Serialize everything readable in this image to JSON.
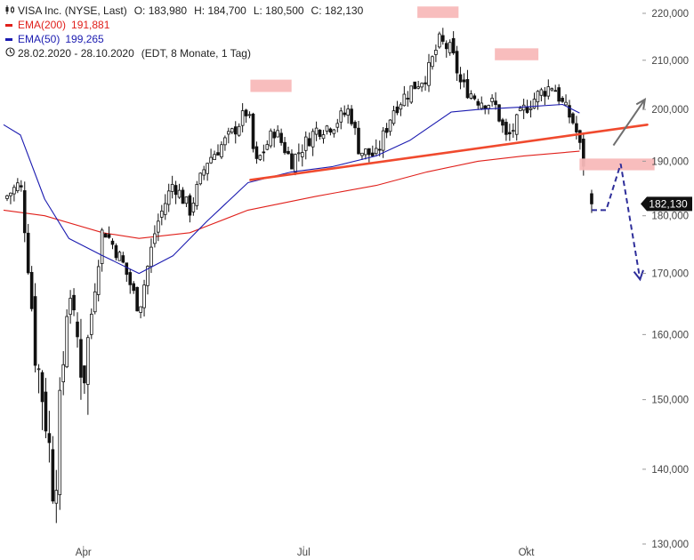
{
  "legend": {
    "title": "VISA Inc. (NYSE, Last)",
    "open": "O: 183,980",
    "high": "H: 184,700",
    "low": "L: 180,500",
    "close": "C: 182,130",
    "ema200_label": "EMA(200)",
    "ema200_value": "191,881",
    "ema50_label": "EMA(50)",
    "ema50_value": "199,265",
    "period": "28.02.2020 - 28.10.2020",
    "period_detail": "(EDT, 8 Monate, 1 Tag)"
  },
  "colors": {
    "ema200": "#e0201b",
    "ema50": "#1b1bb0",
    "trendline": "#f04a2e",
    "resistance": "#f8b9b9",
    "forecast": "#2e2e9a",
    "up_arrow": "#6e6e6e",
    "price_tag": "#111111"
  },
  "chart_data": {
    "type": "candlestick",
    "title": "VISA Inc. (NYSE, Last)",
    "x_range": [
      "2020-02-28",
      "2020-10-28"
    ],
    "x_ticks": [
      "Apr",
      "Jul",
      "Okt"
    ],
    "y_scale": "log",
    "ylim": [
      130,
      222
    ],
    "y_ticks": [
      "220,000",
      "210,000",
      "200,000",
      "190,000",
      "180,000",
      "170,000",
      "160,000",
      "150,000",
      "140,000",
      "130,000"
    ],
    "y_tick_values": [
      220,
      210,
      200,
      190,
      180,
      170,
      160,
      150,
      140,
      130
    ],
    "last_price": "182,130",
    "ohlc": {
      "open": 183.98,
      "high": 184.7,
      "low": 180.5,
      "close": 182.13
    },
    "close_series": [
      {
        "date": "2020-02-28",
        "value": 183
      },
      {
        "date": "2020-03-06",
        "value": 186
      },
      {
        "date": "2020-03-12",
        "value": 158
      },
      {
        "date": "2020-03-17",
        "value": 146
      },
      {
        "date": "2020-03-20",
        "value": 136
      },
      {
        "date": "2020-03-26",
        "value": 168
      },
      {
        "date": "2020-04-01",
        "value": 153
      },
      {
        "date": "2020-04-09",
        "value": 178
      },
      {
        "date": "2020-04-17",
        "value": 172
      },
      {
        "date": "2020-04-24",
        "value": 164
      },
      {
        "date": "2020-05-01",
        "value": 178
      },
      {
        "date": "2020-05-08",
        "value": 186
      },
      {
        "date": "2020-05-15",
        "value": 181
      },
      {
        "date": "2020-05-22",
        "value": 190
      },
      {
        "date": "2020-06-01",
        "value": 195
      },
      {
        "date": "2020-06-08",
        "value": 200
      },
      {
        "date": "2020-06-11",
        "value": 189
      },
      {
        "date": "2020-06-19",
        "value": 196
      },
      {
        "date": "2020-06-26",
        "value": 190
      },
      {
        "date": "2020-07-06",
        "value": 196
      },
      {
        "date": "2020-07-13",
        "value": 197
      },
      {
        "date": "2020-07-20",
        "value": 200
      },
      {
        "date": "2020-07-24",
        "value": 192
      },
      {
        "date": "2020-07-31",
        "value": 191
      },
      {
        "date": "2020-08-07",
        "value": 200
      },
      {
        "date": "2020-08-14",
        "value": 204
      },
      {
        "date": "2020-08-21",
        "value": 207
      },
      {
        "date": "2020-08-26",
        "value": 214
      },
      {
        "date": "2020-08-31",
        "value": 212
      },
      {
        "date": "2020-09-04",
        "value": 205
      },
      {
        "date": "2020-09-11",
        "value": 202
      },
      {
        "date": "2020-09-18",
        "value": 201
      },
      {
        "date": "2020-09-23",
        "value": 194
      },
      {
        "date": "2020-09-30",
        "value": 200
      },
      {
        "date": "2020-10-06",
        "value": 203
      },
      {
        "date": "2020-10-12",
        "value": 205
      },
      {
        "date": "2020-10-16",
        "value": 201
      },
      {
        "date": "2020-10-21",
        "value": 197
      },
      {
        "date": "2020-10-26",
        "value": 187
      },
      {
        "date": "2020-10-28",
        "value": 182.13
      }
    ],
    "ema50_series": [
      {
        "date": "2020-02-28",
        "value": 197
      },
      {
        "date": "2020-03-06",
        "value": 195
      },
      {
        "date": "2020-03-16",
        "value": 183
      },
      {
        "date": "2020-03-26",
        "value": 176
      },
      {
        "date": "2020-04-09",
        "value": 173
      },
      {
        "date": "2020-04-24",
        "value": 170
      },
      {
        "date": "2020-05-08",
        "value": 173
      },
      {
        "date": "2020-05-22",
        "value": 179
      },
      {
        "date": "2020-06-08",
        "value": 186
      },
      {
        "date": "2020-06-26",
        "value": 188
      },
      {
        "date": "2020-07-13",
        "value": 189
      },
      {
        "date": "2020-07-31",
        "value": 191
      },
      {
        "date": "2020-08-14",
        "value": 194
      },
      {
        "date": "2020-08-31",
        "value": 199.5
      },
      {
        "date": "2020-09-11",
        "value": 200
      },
      {
        "date": "2020-09-30",
        "value": 200.5
      },
      {
        "date": "2020-10-16",
        "value": 201
      },
      {
        "date": "2020-10-23",
        "value": 199.3
      }
    ],
    "ema200_series": [
      {
        "date": "2020-02-28",
        "value": 181
      },
      {
        "date": "2020-03-16",
        "value": 180
      },
      {
        "date": "2020-04-09",
        "value": 177
      },
      {
        "date": "2020-04-24",
        "value": 176
      },
      {
        "date": "2020-05-15",
        "value": 177
      },
      {
        "date": "2020-06-08",
        "value": 181
      },
      {
        "date": "2020-07-06",
        "value": 183.5
      },
      {
        "date": "2020-07-31",
        "value": 185.5
      },
      {
        "date": "2020-08-21",
        "value": 188
      },
      {
        "date": "2020-09-11",
        "value": 190
      },
      {
        "date": "2020-09-30",
        "value": 191
      },
      {
        "date": "2020-10-23",
        "value": 191.9
      }
    ],
    "annotations": {
      "resistance_zones": [
        {
          "date_start": "2020-06-09",
          "date_end": "2020-06-26",
          "low": 203.5,
          "high": 206
        },
        {
          "date_start": "2020-08-17",
          "date_end": "2020-09-03",
          "low": 219,
          "high": 221.5
        },
        {
          "date_start": "2020-09-18",
          "date_end": "2020-10-06",
          "low": 210,
          "high": 212.5
        },
        {
          "date_start": "2020-10-23",
          "date_end": "2020-11-23",
          "low": 188.3,
          "high": 190.5
        }
      ],
      "trendline": {
        "from": {
          "date": "2020-06-09",
          "value": 186.5
        },
        "to": {
          "date": "2020-11-20",
          "value": 197
        }
      },
      "bullish_arrow": {
        "from": {
          "date": "2020-11-06",
          "value": 193
        },
        "to": {
          "date": "2020-11-19",
          "value": 202
        }
      },
      "forecast_path": [
        {
          "date": "2020-10-28",
          "value": 181
        },
        {
          "date": "2020-11-03",
          "value": 181
        },
        {
          "date": "2020-11-09",
          "value": 189.5
        },
        {
          "date": "2020-11-17",
          "value": 169
        }
      ]
    }
  }
}
